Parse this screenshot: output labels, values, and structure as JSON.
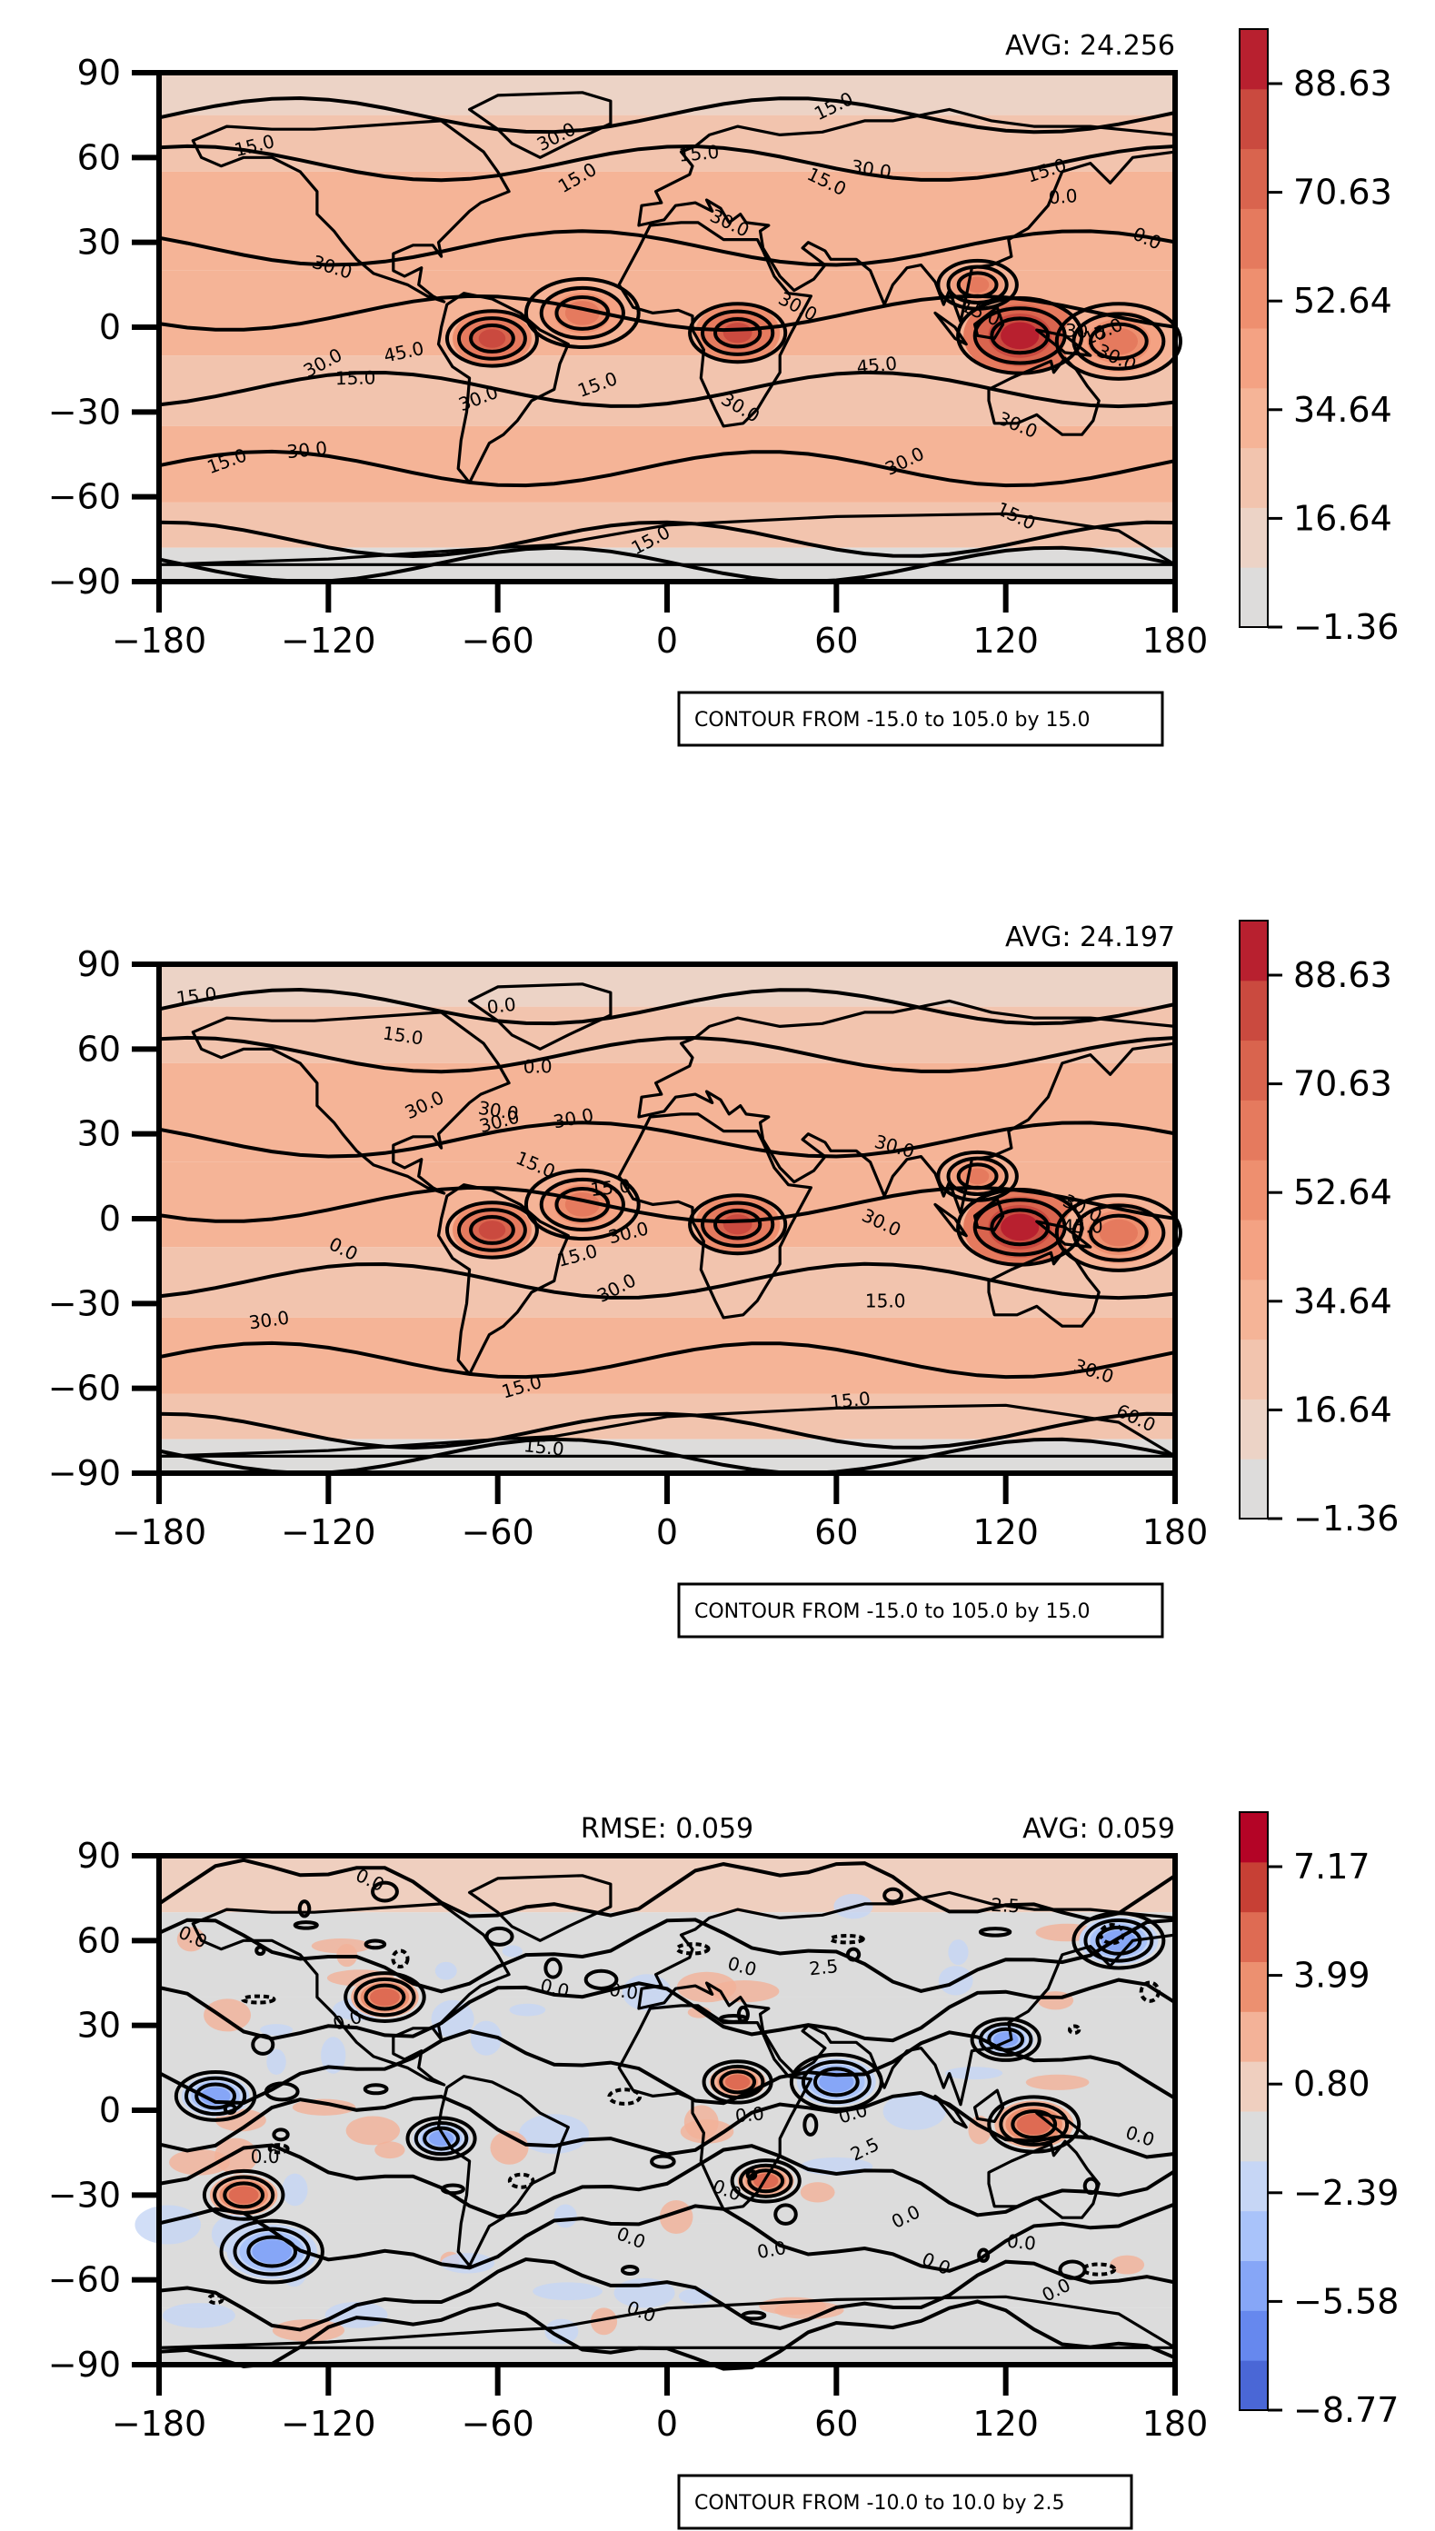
{
  "panels": [
    {
      "id": "panel-1",
      "stats": [
        {
          "label": "AVG: 24.256",
          "pos": "right"
        }
      ],
      "colorbar": {
        "ticks": [
          "88.63",
          "70.63",
          "52.64",
          "34.64",
          "16.64",
          "−1.36"
        ],
        "colors": [
          "#dddcdb",
          "#ecd3c6",
          "#f2c4ae",
          "#f5b497",
          "#f4a283",
          "#ee8f6f",
          "#e57a5e",
          "#d9644e",
          "#ca4a3f",
          "#b8202f"
        ]
      },
      "contour_note": "CONTOUR FROM -15.0 to 105.0 by 15.0",
      "contour_labels": [
        "15.0",
        "15.0",
        "30.0",
        "30.0",
        "15.0",
        "30.0",
        "15.0",
        "15.0",
        "30.0",
        "30.0",
        "30.0",
        "30.0",
        "15.0",
        "15.0",
        "30.0",
        "45.0",
        "45.0",
        "15.0",
        "15.0",
        "30.0",
        "15.0",
        "30.0",
        "30.0",
        "15.0",
        "15.0",
        "30.0",
        "15.0",
        "0.0",
        "0.0",
        "30.0"
      ]
    },
    {
      "id": "panel-2",
      "stats": [
        {
          "label": "AVG: 24.197",
          "pos": "right"
        }
      ],
      "colorbar": {
        "ticks": [
          "88.63",
          "70.63",
          "52.64",
          "34.64",
          "16.64",
          "−1.36"
        ],
        "colors": [
          "#dddcdb",
          "#ecd3c6",
          "#f2c4ae",
          "#f5b497",
          "#f4a283",
          "#ee8f6f",
          "#e57a5e",
          "#d9644e",
          "#ca4a3f",
          "#b8202f"
        ]
      },
      "contour_note": "CONTOUR FROM -15.0 to 105.0 by 15.0",
      "contour_labels": [
        "15.0",
        "30.0",
        "15.0",
        "30.0",
        "30.0",
        "15.0",
        "45.0",
        "30.0",
        "15.0",
        "30.0",
        "15.0",
        "15.0",
        "30.0",
        "0.0",
        "30.0",
        "15.0",
        "30.0",
        "15.0",
        "60.0",
        "30.0",
        "30.0",
        "30.0",
        "0.0",
        "0.0",
        "15.0"
      ]
    },
    {
      "id": "panel-3",
      "stats": [
        {
          "label": "RMSE: 0.059",
          "pos": "center"
        },
        {
          "label": "AVG: 0.059",
          "pos": "right"
        }
      ],
      "colorbar": {
        "ticks": [
          "7.17",
          "3.99",
          "0.80",
          "−2.39",
          "−5.58",
          "−8.77"
        ],
        "colors": [
          "#4a67d6",
          "#6688ee",
          "#86a6f7",
          "#a9c3fa",
          "#c6d6f5",
          "#dcdcdc",
          "#efcfbf",
          "#f3b298",
          "#ec9070",
          "#de6b53",
          "#c74035",
          "#b40426"
        ]
      },
      "contour_note": "CONTOUR FROM -10.0 to 10.0 by 2.5",
      "contour_labels": [
        "0.0",
        "0.0",
        "0.0",
        "0.0",
        "0.0",
        "0.0",
        "0.0",
        "2.5",
        "0.0",
        "2.5",
        "0.0",
        "0.0",
        "0.0",
        "0.0",
        "0.0",
        "2.5",
        "0.0",
        "0.0",
        "0.0",
        "0.0",
        "0.0"
      ]
    }
  ],
  "chart_data": [
    {
      "type": "heatmap",
      "title": "",
      "annotation": "AVG: 24.256",
      "xlabel": "",
      "ylabel": "",
      "xlim": [
        -180,
        180
      ],
      "ylim": [
        -90,
        90
      ],
      "xticks": [
        "−180",
        "−120",
        "−60",
        "0",
        "60",
        "120",
        "180"
      ],
      "yticks": [
        "90",
        "60",
        "30",
        "0",
        "−30",
        "−60",
        "−90"
      ],
      "colorbar_range": [
        -1.36,
        97.63
      ],
      "contour_levels": [
        -15.0,
        105.0,
        15.0
      ],
      "colormap": "coolwarm (upper half)"
    },
    {
      "type": "heatmap",
      "title": "",
      "annotation": "AVG: 24.197",
      "xlabel": "",
      "ylabel": "",
      "xlim": [
        -180,
        180
      ],
      "ylim": [
        -90,
        90
      ],
      "xticks": [
        "−180",
        "−120",
        "−60",
        "0",
        "60",
        "120",
        "180"
      ],
      "yticks": [
        "90",
        "60",
        "30",
        "0",
        "−30",
        "−60",
        "−90"
      ],
      "colorbar_range": [
        -1.36,
        97.63
      ],
      "contour_levels": [
        -15.0,
        105.0,
        15.0
      ],
      "colormap": "coolwarm (upper half)"
    },
    {
      "type": "heatmap",
      "title": "",
      "annotation": "RMSE: 0.059 / AVG: 0.059",
      "xlabel": "",
      "ylabel": "",
      "xlim": [
        -180,
        180
      ],
      "ylim": [
        -90,
        90
      ],
      "xticks": [
        "−180",
        "−120",
        "−60",
        "0",
        "60",
        "120",
        "180"
      ],
      "yticks": [
        "90",
        "60",
        "30",
        "0",
        "−30",
        "−60",
        "−90"
      ],
      "colorbar_range": [
        -8.77,
        8.77
      ],
      "contour_levels": [
        -10.0,
        10.0,
        2.5
      ],
      "colormap": "coolwarm"
    }
  ]
}
